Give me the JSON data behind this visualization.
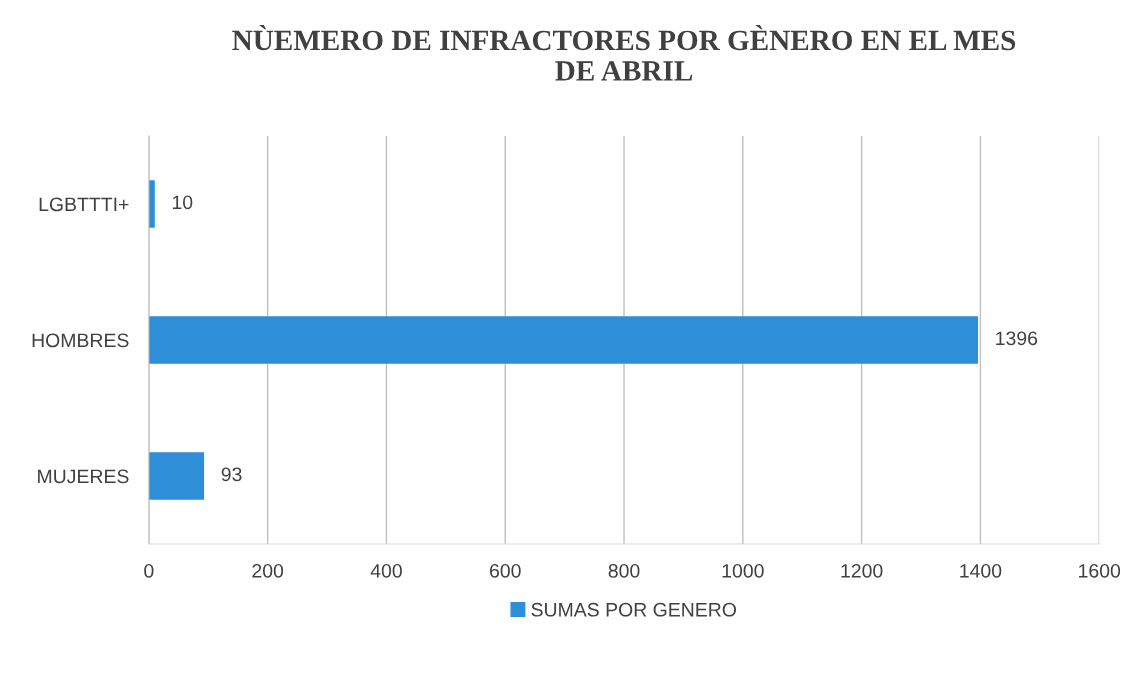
{
  "chart_data": {
    "type": "bar",
    "orientation": "horizontal",
    "title": "NÙEMERO DE INFRACTORES POR GÈNERO EN EL MES\nDE ABRIL",
    "categories": [
      "LGBTTTI+",
      "HOMBRES",
      "MUJERES"
    ],
    "series": [
      {
        "name": "SUMAS POR GENERO",
        "color": "#2e8fd8",
        "values": [
          10,
          1396,
          93
        ]
      }
    ],
    "xlim": [
      0,
      1600
    ],
    "xticks": [
      0,
      200,
      400,
      600,
      800,
      1000,
      1200,
      1400,
      1600
    ],
    "grid": "x",
    "legend": "bottom",
    "data_labels": true
  }
}
